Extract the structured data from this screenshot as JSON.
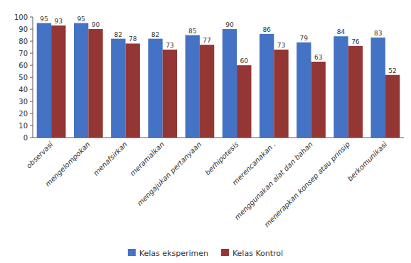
{
  "chart_data": {
    "type": "bar",
    "categories": [
      "observasi",
      "mengelompokan",
      "menafsirkan",
      "meramalkan",
      "mengajukan pertanyaan",
      "berhipotesis",
      "merencanakan .",
      "menggunakan alat dan bahan",
      "menerapkan konsep atau prinsip",
      "berkomunikasi"
    ],
    "series": [
      {
        "name": "Kelas eksperimen",
        "color": "#4472C4",
        "values": [
          95,
          95,
          82,
          82,
          85,
          90,
          86,
          79,
          84,
          83
        ]
      },
      {
        "name": "Kelas Kontrol",
        "color": "#943634",
        "values": [
          93,
          90,
          78,
          73,
          77,
          60,
          73,
          63,
          76,
          52
        ]
      }
    ],
    "ylim": [
      0,
      100
    ],
    "yticks": [
      0,
      10,
      20,
      30,
      40,
      50,
      60,
      70,
      80,
      90,
      100
    ],
    "data_labels": true,
    "grid": false,
    "legend": "bottom"
  }
}
